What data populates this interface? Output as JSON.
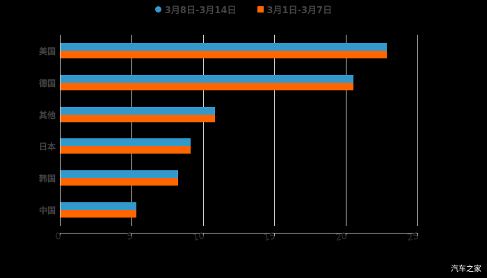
{
  "chart_data": {
    "type": "bar",
    "orientation": "horizontal",
    "title": "",
    "categories": [
      "美国",
      "德国",
      "其他",
      "日本",
      "韩国",
      "中国"
    ],
    "series": [
      {
        "name": "3月8日-3月14日",
        "color": "#3399cc",
        "values": [
          22.8,
          20.5,
          10.8,
          9.1,
          8.2,
          5.3
        ]
      },
      {
        "name": "3月1日-3月7日",
        "color": "#ff6600",
        "values": [
          22.8,
          20.5,
          10.8,
          9.1,
          8.2,
          5.3
        ]
      }
    ],
    "xlabel": "",
    "ylabel": "",
    "xlim": [
      0,
      25
    ],
    "xticks": [
      "0",
      "5",
      "10",
      "15",
      "20",
      "25"
    ],
    "grid": true,
    "legend_position": "top"
  },
  "legend": [
    {
      "label": "3月8日-3月14日",
      "color": "#3399cc",
      "shape": "circle"
    },
    {
      "label": "3月1日-3月7日",
      "color": "#ff6600",
      "shape": "square"
    }
  ],
  "watermark": "汽车之家"
}
